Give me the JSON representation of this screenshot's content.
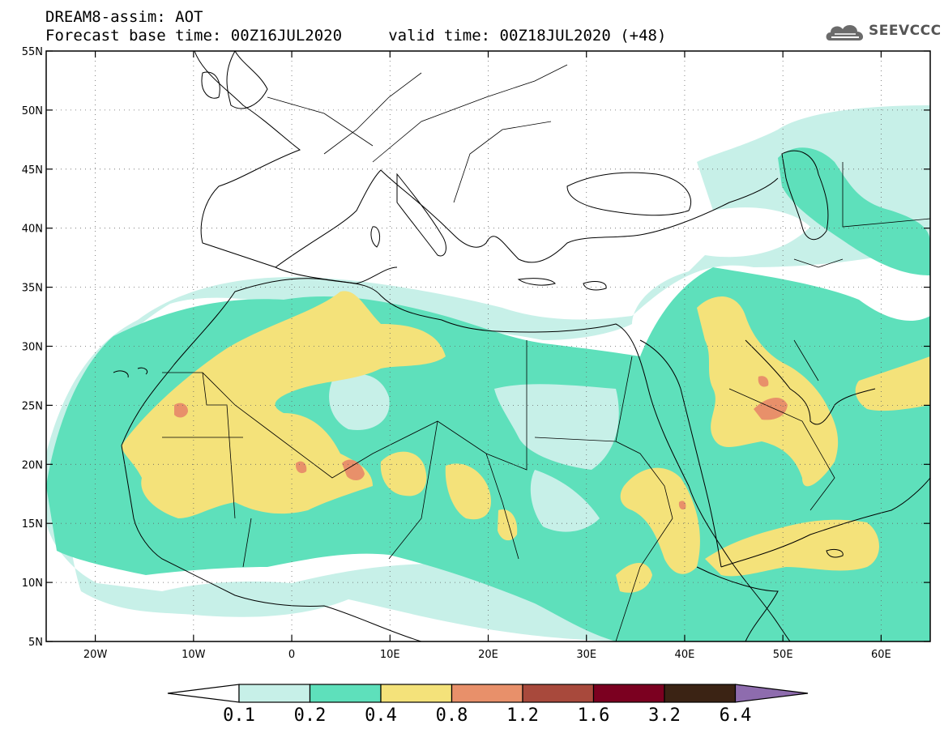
{
  "header": {
    "title_line1": "DREAM8-assim: AOT",
    "title_line2": "Forecast base time: 00Z16JUL2020     valid time: 00Z18JUL2020 (+48)"
  },
  "logo": {
    "text": "SEEVCCC",
    "icon": "cloud-icon"
  },
  "map": {
    "lon_range": [
      -25,
      65
    ],
    "lat_range": [
      5,
      55
    ],
    "lon_ticks": [
      "20W",
      "10W",
      "0",
      "10E",
      "20E",
      "30E",
      "40E",
      "50E",
      "60E"
    ],
    "lat_ticks": [
      "55N",
      "50N",
      "45N",
      "40N",
      "35N",
      "30N",
      "25N",
      "20N",
      "15N",
      "10N",
      "5N"
    ],
    "gridlines": "dotted"
  },
  "legend": {
    "levels": [
      "0.1",
      "0.2",
      "0.4",
      "0.8",
      "1.2",
      "1.6",
      "3.2",
      "6.4"
    ],
    "colors": [
      "#ffffff",
      "#c7f0e8",
      "#5ee0bb",
      "#f4e27a",
      "#e8906a",
      "#a8493c",
      "#7b0020",
      "#3b2314",
      "#8e6cae"
    ]
  }
}
